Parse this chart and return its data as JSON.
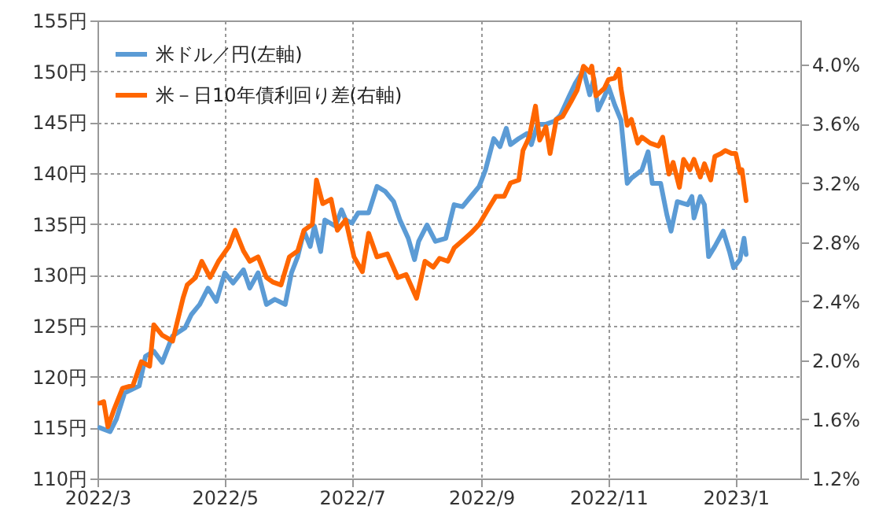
{
  "chart_data": {
    "type": "line",
    "xlim": [
      "2022-03-01",
      "2023-02-01"
    ],
    "xticks": [
      {
        "value": "2022-03-01",
        "label": "2022/3"
      },
      {
        "value": "2022-05-01",
        "label": "2022/5"
      },
      {
        "value": "2022-07-01",
        "label": "2022/7"
      },
      {
        "value": "2022-09-01",
        "label": "2022/9"
      },
      {
        "value": "2022-11-01",
        "label": "2022/11"
      },
      {
        "value": "2023-01-01",
        "label": "2023/1"
      }
    ],
    "ylim": [
      110,
      155
    ],
    "yticks": [
      {
        "value": 110,
        "label": "110円"
      },
      {
        "value": 115,
        "label": "115円"
      },
      {
        "value": 120,
        "label": "120円"
      },
      {
        "value": 125,
        "label": "125円"
      },
      {
        "value": 130,
        "label": "130円"
      },
      {
        "value": 135,
        "label": "135円"
      },
      {
        "value": 140,
        "label": "140円"
      },
      {
        "value": 145,
        "label": "145円"
      },
      {
        "value": 150,
        "label": "150円"
      },
      {
        "value": 155,
        "label": "155円"
      }
    ],
    "y2lim": [
      1.2,
      4.3
    ],
    "y2ticks": [
      {
        "value": 1.2,
        "label": "1.2%"
      },
      {
        "value": 1.6,
        "label": "1.6%"
      },
      {
        "value": 2.0,
        "label": "2.0%"
      },
      {
        "value": 2.4,
        "label": "2.4%"
      },
      {
        "value": 2.8,
        "label": "2.8%"
      },
      {
        "value": 3.2,
        "label": "3.2%"
      },
      {
        "value": 3.6,
        "label": "3.6%"
      },
      {
        "value": 4.0,
        "label": "4.0%"
      }
    ],
    "grid": true,
    "legend": "top left",
    "marker": "none",
    "line_style": "solid",
    "series": [
      {
        "name": "米ドル／円(左軸)",
        "color": "#5b9bd5",
        "axis": "y",
        "x": [
          "2022-03-02",
          "2022-03-07",
          "2022-03-10",
          "2022-03-14",
          "2022-03-21",
          "2022-03-24",
          "2022-03-28",
          "2022-04-01",
          "2022-04-06",
          "2022-04-12",
          "2022-04-15",
          "2022-04-19",
          "2022-04-23",
          "2022-04-27",
          "2022-05-01",
          "2022-05-05",
          "2022-05-10",
          "2022-05-13",
          "2022-05-17",
          "2022-05-21",
          "2022-05-25",
          "2022-05-30",
          "2022-06-02",
          "2022-06-05",
          "2022-06-08",
          "2022-06-11",
          "2022-06-13",
          "2022-06-16",
          "2022-06-18",
          "2022-06-23",
          "2022-06-26",
          "2022-06-28",
          "2022-07-01",
          "2022-07-04",
          "2022-07-09",
          "2022-07-13",
          "2022-07-17",
          "2022-07-21",
          "2022-07-24",
          "2022-07-28",
          "2022-07-31",
          "2022-08-02",
          "2022-08-06",
          "2022-08-10",
          "2022-08-15",
          "2022-08-19",
          "2022-08-23",
          "2022-08-27",
          "2022-08-31",
          "2022-09-03",
          "2022-09-07",
          "2022-09-10",
          "2022-09-13",
          "2022-09-15",
          "2022-09-19",
          "2022-09-23",
          "2022-09-25",
          "2022-09-28",
          "2022-10-02",
          "2022-10-06",
          "2022-10-09",
          "2022-10-13",
          "2022-10-16",
          "2022-10-20",
          "2022-10-23",
          "2022-10-25",
          "2022-10-27",
          "2022-10-30",
          "2022-11-01",
          "2022-11-04",
          "2022-11-07",
          "2022-11-10",
          "2022-11-12",
          "2022-11-17",
          "2022-11-20",
          "2022-11-22",
          "2022-11-26",
          "2022-11-29",
          "2022-12-01",
          "2022-12-04",
          "2022-12-09",
          "2022-12-11",
          "2022-12-12",
          "2022-12-15",
          "2022-12-17",
          "2022-12-19",
          "2022-12-22",
          "2022-12-26",
          "2022-12-29",
          "2022-12-31",
          "2023-01-03",
          "2023-01-05",
          "2023-01-06"
        ],
        "values": [
          115.0,
          114.6,
          115.8,
          118.4,
          119.1,
          122.0,
          122.5,
          121.4,
          124.0,
          124.8,
          126.1,
          127.1,
          128.7,
          127.4,
          130.2,
          129.2,
          130.5,
          128.7,
          130.2,
          127.1,
          127.6,
          127.1,
          130.2,
          131.8,
          134.3,
          132.8,
          134.8,
          132.3,
          135.4,
          134.8,
          136.4,
          135.4,
          135.1,
          136.1,
          136.1,
          138.7,
          138.2,
          137.2,
          135.4,
          133.6,
          131.5,
          133.3,
          134.9,
          133.3,
          133.6,
          136.9,
          136.7,
          137.7,
          138.7,
          140.3,
          143.4,
          142.6,
          144.4,
          142.8,
          143.4,
          143.9,
          142.8,
          144.8,
          144.8,
          145.1,
          145.7,
          147.5,
          148.8,
          150.1,
          147.7,
          149.3,
          146.2,
          147.5,
          148.5,
          146.7,
          145.2,
          139.0,
          139.5,
          140.3,
          142.1,
          139.0,
          139.0,
          135.9,
          134.3,
          137.2,
          136.9,
          137.7,
          135.6,
          137.7,
          136.9,
          131.8,
          132.8,
          134.3,
          132.3,
          130.7,
          131.5,
          133.6,
          132.0
        ]
      },
      {
        "name": "米－日10年債利回り差(右軸)",
        "color": "#ff6600",
        "axis": "y2",
        "x": [
          "2022-03-02",
          "2022-03-04",
          "2022-03-06",
          "2022-03-09",
          "2022-03-13",
          "2022-03-18",
          "2022-03-22",
          "2022-03-26",
          "2022-03-28",
          "2022-04-01",
          "2022-04-06",
          "2022-04-11",
          "2022-04-13",
          "2022-04-17",
          "2022-04-20",
          "2022-04-24",
          "2022-04-28",
          "2022-05-03",
          "2022-05-06",
          "2022-05-10",
          "2022-05-13",
          "2022-05-17",
          "2022-05-21",
          "2022-05-24",
          "2022-05-28",
          "2022-06-01",
          "2022-06-05",
          "2022-06-08",
          "2022-06-12",
          "2022-06-14",
          "2022-06-17",
          "2022-06-21",
          "2022-06-24",
          "2022-06-28",
          "2022-07-02",
          "2022-07-06",
          "2022-07-09",
          "2022-07-13",
          "2022-07-18",
          "2022-07-23",
          "2022-07-27",
          "2022-08-01",
          "2022-08-05",
          "2022-08-09",
          "2022-08-12",
          "2022-08-16",
          "2022-08-19",
          "2022-08-23",
          "2022-08-27",
          "2022-08-31",
          "2022-09-05",
          "2022-09-08",
          "2022-09-12",
          "2022-09-15",
          "2022-09-19",
          "2022-09-21",
          "2022-09-24",
          "2022-09-27",
          "2022-09-29",
          "2022-10-02",
          "2022-10-04",
          "2022-10-07",
          "2022-10-10",
          "2022-10-14",
          "2022-10-17",
          "2022-10-20",
          "2022-10-23",
          "2022-10-24",
          "2022-10-26",
          "2022-10-30",
          "2022-11-01",
          "2022-11-04",
          "2022-11-06",
          "2022-11-07",
          "2022-11-10",
          "2022-11-12",
          "2022-11-15",
          "2022-11-17",
          "2022-11-21",
          "2022-11-25",
          "2022-11-27",
          "2022-11-30",
          "2022-12-02",
          "2022-12-05",
          "2022-12-07",
          "2022-12-10",
          "2022-12-12",
          "2022-12-15",
          "2022-12-17",
          "2022-12-20",
          "2022-12-22",
          "2022-12-25",
          "2022-12-27",
          "2022-12-30",
          "2023-01-01",
          "2023-01-03",
          "2023-01-04",
          "2023-01-06"
        ],
        "values": [
          1.71,
          1.72,
          1.55,
          1.67,
          1.81,
          1.83,
          1.99,
          1.96,
          2.24,
          2.17,
          2.13,
          2.42,
          2.51,
          2.56,
          2.67,
          2.56,
          2.67,
          2.77,
          2.88,
          2.74,
          2.67,
          2.7,
          2.56,
          2.53,
          2.51,
          2.7,
          2.74,
          2.88,
          2.92,
          3.22,
          3.06,
          3.09,
          2.88,
          2.95,
          2.7,
          2.6,
          2.86,
          2.7,
          2.72,
          2.56,
          2.58,
          2.42,
          2.67,
          2.63,
          2.69,
          2.67,
          2.76,
          2.81,
          2.86,
          2.92,
          3.04,
          3.11,
          3.11,
          3.2,
          3.22,
          3.42,
          3.51,
          3.72,
          3.49,
          3.58,
          3.4,
          3.63,
          3.65,
          3.75,
          3.83,
          3.99,
          3.95,
          3.99,
          3.79,
          3.84,
          3.9,
          3.91,
          3.97,
          3.84,
          3.59,
          3.63,
          3.47,
          3.51,
          3.47,
          3.45,
          3.51,
          3.26,
          3.34,
          3.17,
          3.36,
          3.29,
          3.36,
          3.24,
          3.33,
          3.22,
          3.38,
          3.4,
          3.42,
          3.4,
          3.4,
          3.27,
          3.29,
          3.08
        ]
      }
    ]
  }
}
